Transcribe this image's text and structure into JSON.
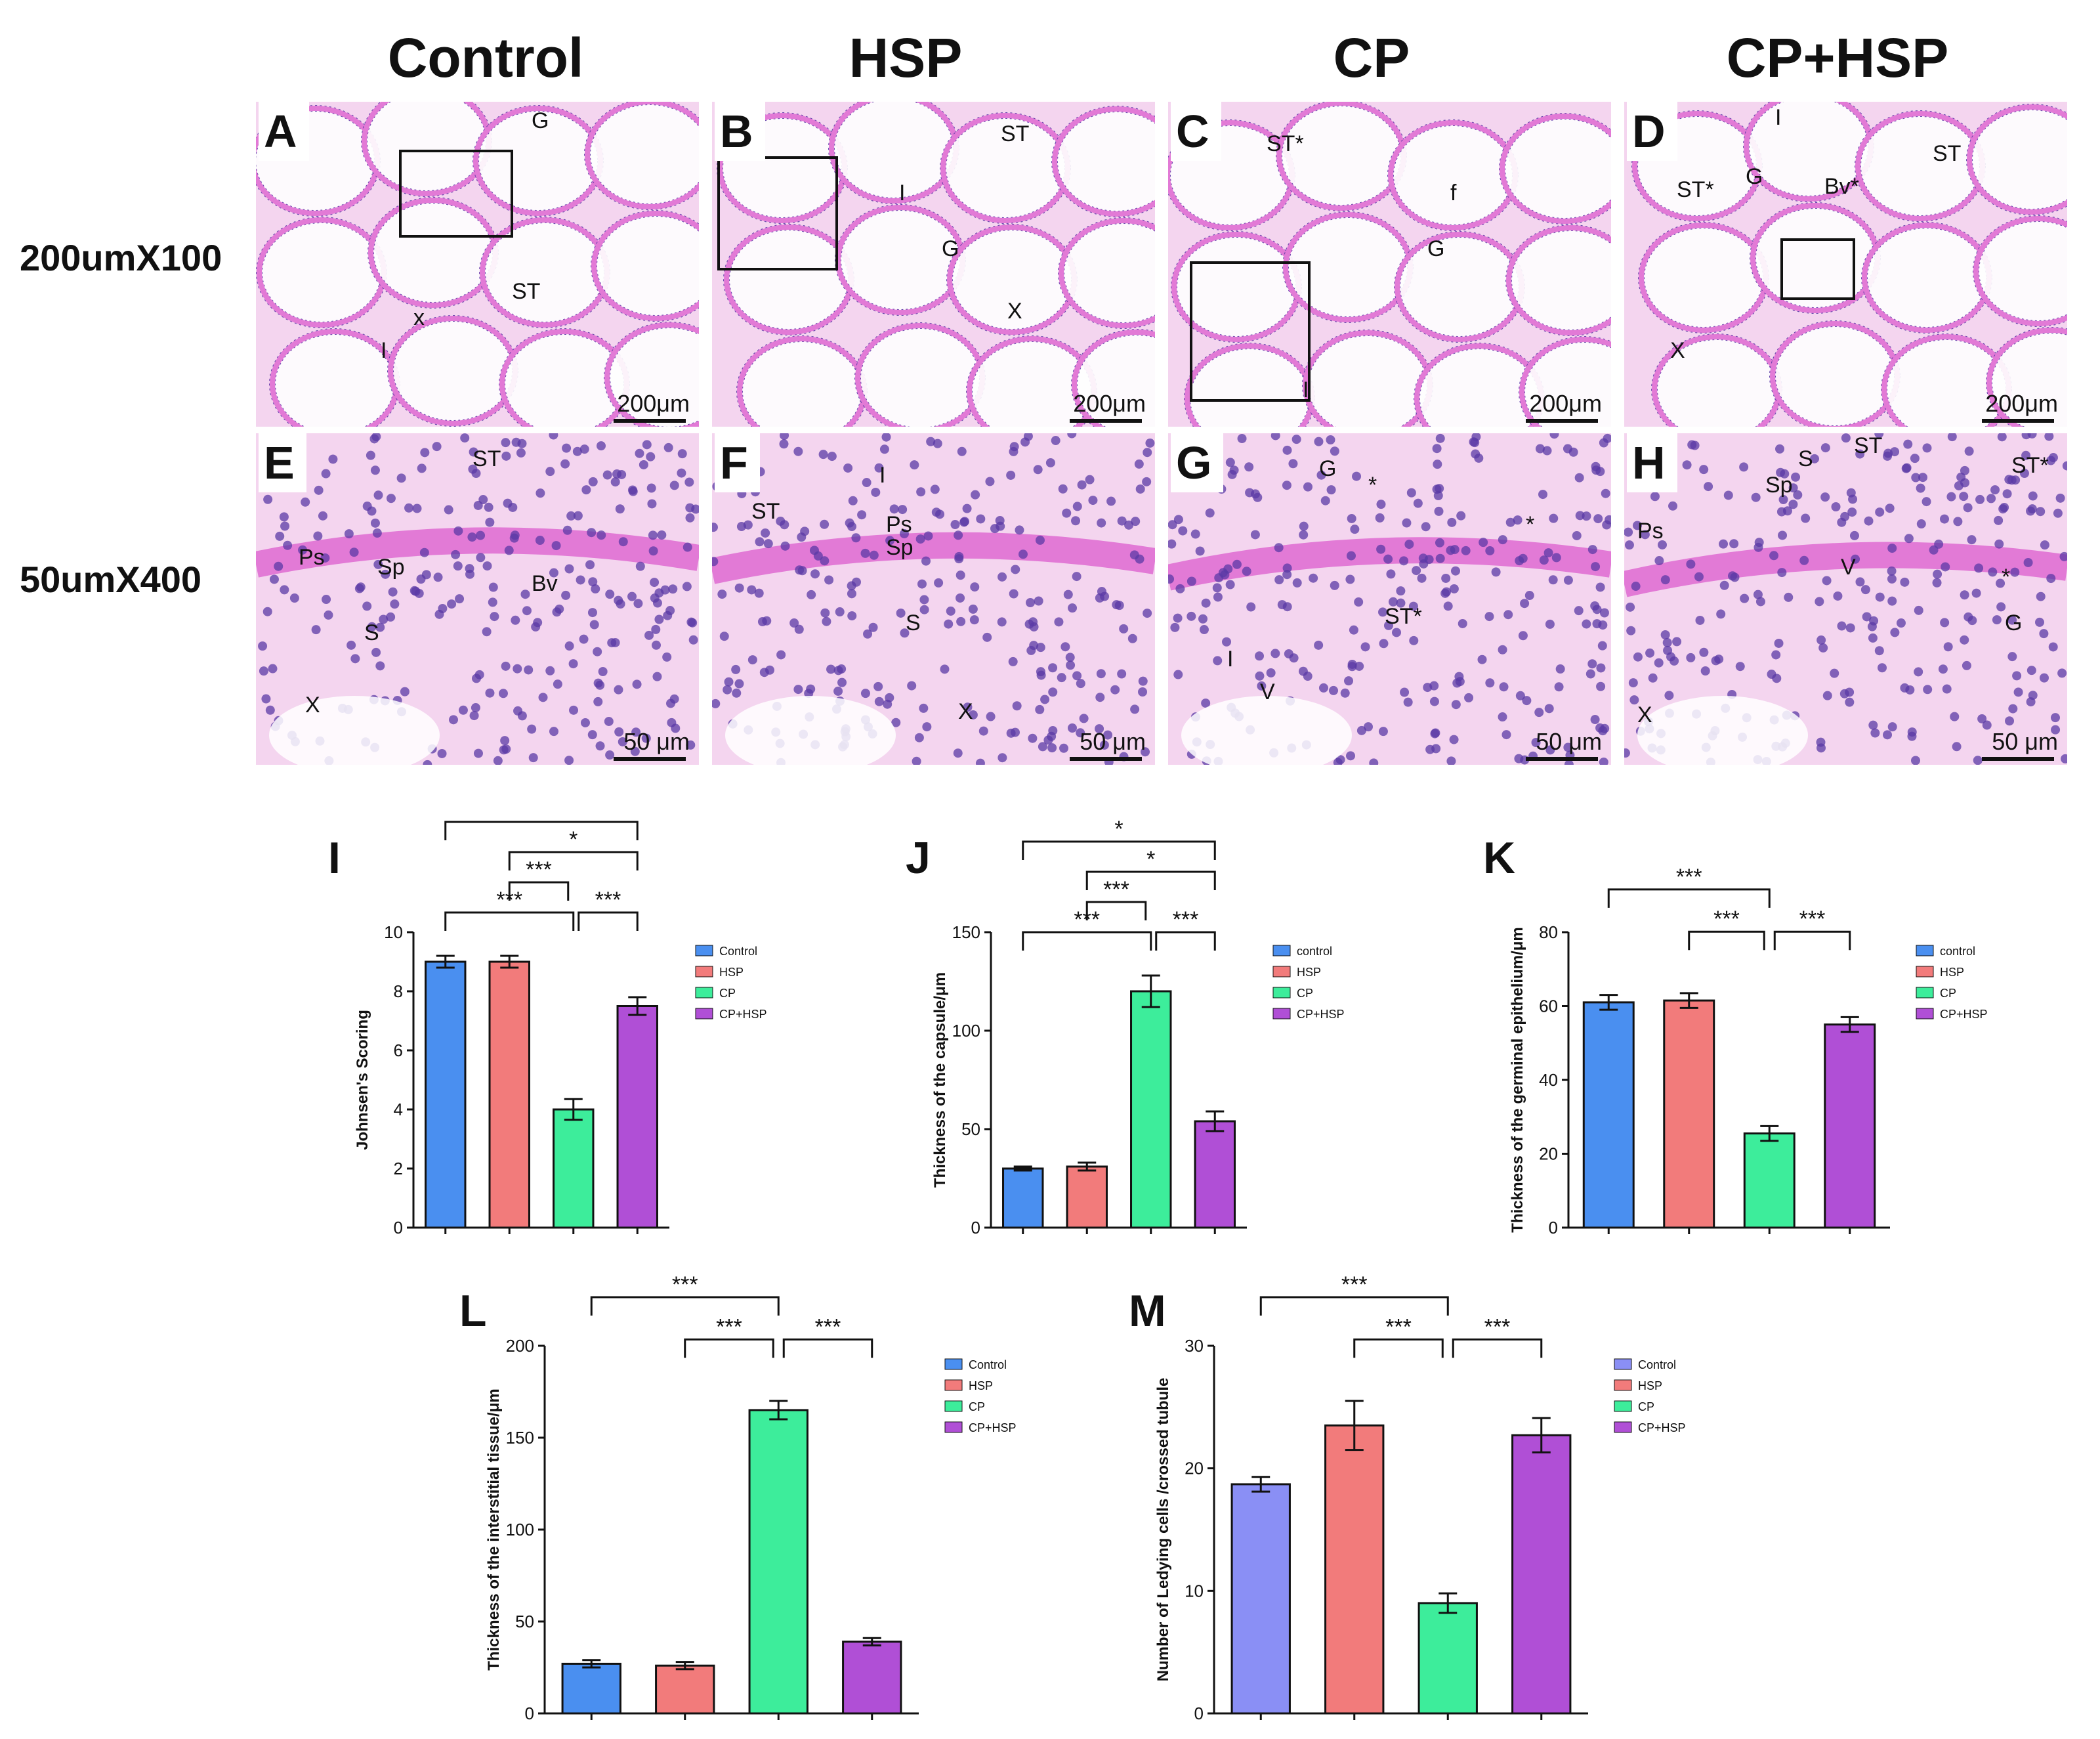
{
  "columns": [
    "Control",
    "HSP",
    "CP",
    "CP+HSP"
  ],
  "rows": [
    "200umX100",
    "50umX400"
  ],
  "panels": [
    {
      "letter": "A",
      "scale": "200μm",
      "labels": [
        "G",
        "I",
        "ST",
        "x"
      ]
    },
    {
      "letter": "B",
      "scale": "200μm",
      "labels": [
        "ST",
        "I",
        "G",
        "X"
      ]
    },
    {
      "letter": "C",
      "scale": "200μm",
      "labels": [
        "ST*",
        "f",
        "G",
        "I"
      ]
    },
    {
      "letter": "D",
      "scale": "200μm",
      "labels": [
        "I",
        "ST",
        "ST*",
        "G",
        "Bv*",
        "X"
      ]
    },
    {
      "letter": "E",
      "scale": "50 μm",
      "labels": [
        "ST",
        "Ps",
        "Sp",
        "Bv",
        "S",
        "X"
      ]
    },
    {
      "letter": "F",
      "scale": "50 μm",
      "labels": [
        "I",
        "ST",
        "Ps",
        "Sp",
        "S",
        "X"
      ]
    },
    {
      "letter": "G",
      "scale": "50 μm",
      "labels": [
        "G",
        "*",
        "*",
        "I",
        "V",
        "ST*"
      ]
    },
    {
      "letter": "H",
      "scale": "50 μm",
      "labels": [
        "ST",
        "S",
        "Sp",
        "ST*",
        "Ps",
        "V",
        "*",
        "G",
        "X"
      ]
    }
  ],
  "colors": {
    "control": "#4a8ff0",
    "hsp": "#f27b7b",
    "cp": "#3ded9b",
    "cphsp": "#b04fd6",
    "control_m": "#8a8ff5",
    "he_pink": "#e27ad6",
    "he_nuclei": "#5b3aa6"
  },
  "chart_data": [
    {
      "letter": "I",
      "type": "bar",
      "ylabel": "Johnsen's Scoring",
      "ylim": [
        0,
        10
      ],
      "yticks": [
        "0",
        "2",
        "4",
        "6",
        "8",
        "10"
      ],
      "categories": [
        "Control",
        "HSP",
        "CP",
        "CP+HSP"
      ],
      "values": [
        9.0,
        9.0,
        4.0,
        7.5
      ],
      "errors": [
        0.2,
        0.2,
        0.35,
        0.3
      ],
      "legend": [
        "Control",
        "HSP",
        "CP",
        "CP+HSP"
      ],
      "significance": [
        "*",
        "*",
        "***",
        "***",
        "***"
      ]
    },
    {
      "letter": "J",
      "type": "bar",
      "ylabel": "Thickness of the capsule/μm",
      "ylim": [
        0,
        150
      ],
      "yticks": [
        "0",
        "50",
        "100",
        "150"
      ],
      "categories": [
        "control",
        "HSP",
        "CP",
        "CP+HSP"
      ],
      "values": [
        30,
        31,
        120,
        54
      ],
      "errors": [
        1,
        2,
        8,
        5
      ],
      "legend": [
        "control",
        "HSP",
        "CP",
        "CP+HSP"
      ],
      "significance": [
        "*",
        "*",
        "***",
        "***",
        "***"
      ]
    },
    {
      "letter": "K",
      "type": "bar",
      "ylabel": "Thickness of the germinal epithelium/μm",
      "ylim": [
        0,
        80
      ],
      "yticks": [
        "0",
        "20",
        "40",
        "60",
        "80"
      ],
      "categories": [
        "control",
        "HSP",
        "CP",
        "CP+HSP"
      ],
      "values": [
        61,
        61.5,
        25.5,
        55
      ],
      "errors": [
        2,
        2,
        2,
        2
      ],
      "legend": [
        "control",
        "HSP",
        "CP",
        "CP+HSP"
      ],
      "significance": [
        "***",
        "***",
        "***"
      ]
    },
    {
      "letter": "L",
      "type": "bar",
      "ylabel": "Thickness of the interstitial tissue/μm",
      "ylim": [
        0,
        200
      ],
      "yticks": [
        "0",
        "50",
        "100",
        "150",
        "200"
      ],
      "categories": [
        "Control",
        "HSP",
        "CP",
        "CP+HSP"
      ],
      "values": [
        27,
        26,
        165,
        39
      ],
      "errors": [
        2,
        2,
        5,
        2
      ],
      "legend": [
        "Control",
        "HSP",
        "CP",
        "CP+HSP"
      ],
      "significance": [
        "***",
        "***",
        "***"
      ]
    },
    {
      "letter": "M",
      "type": "bar",
      "ylabel": "Number of Ledying cells /crossed tubule",
      "ylim": [
        0,
        30
      ],
      "yticks": [
        "0",
        "10",
        "20",
        "30"
      ],
      "categories": [
        "Control",
        "HSP",
        "CP",
        "CP+HSP"
      ],
      "values": [
        18.7,
        23.5,
        9.0,
        22.7
      ],
      "errors": [
        0.6,
        2.0,
        0.8,
        1.4
      ],
      "legend": [
        "Control",
        "HSP",
        "CP",
        "CP+HSP"
      ],
      "significance": [
        "***",
        "***",
        "***"
      ]
    }
  ]
}
